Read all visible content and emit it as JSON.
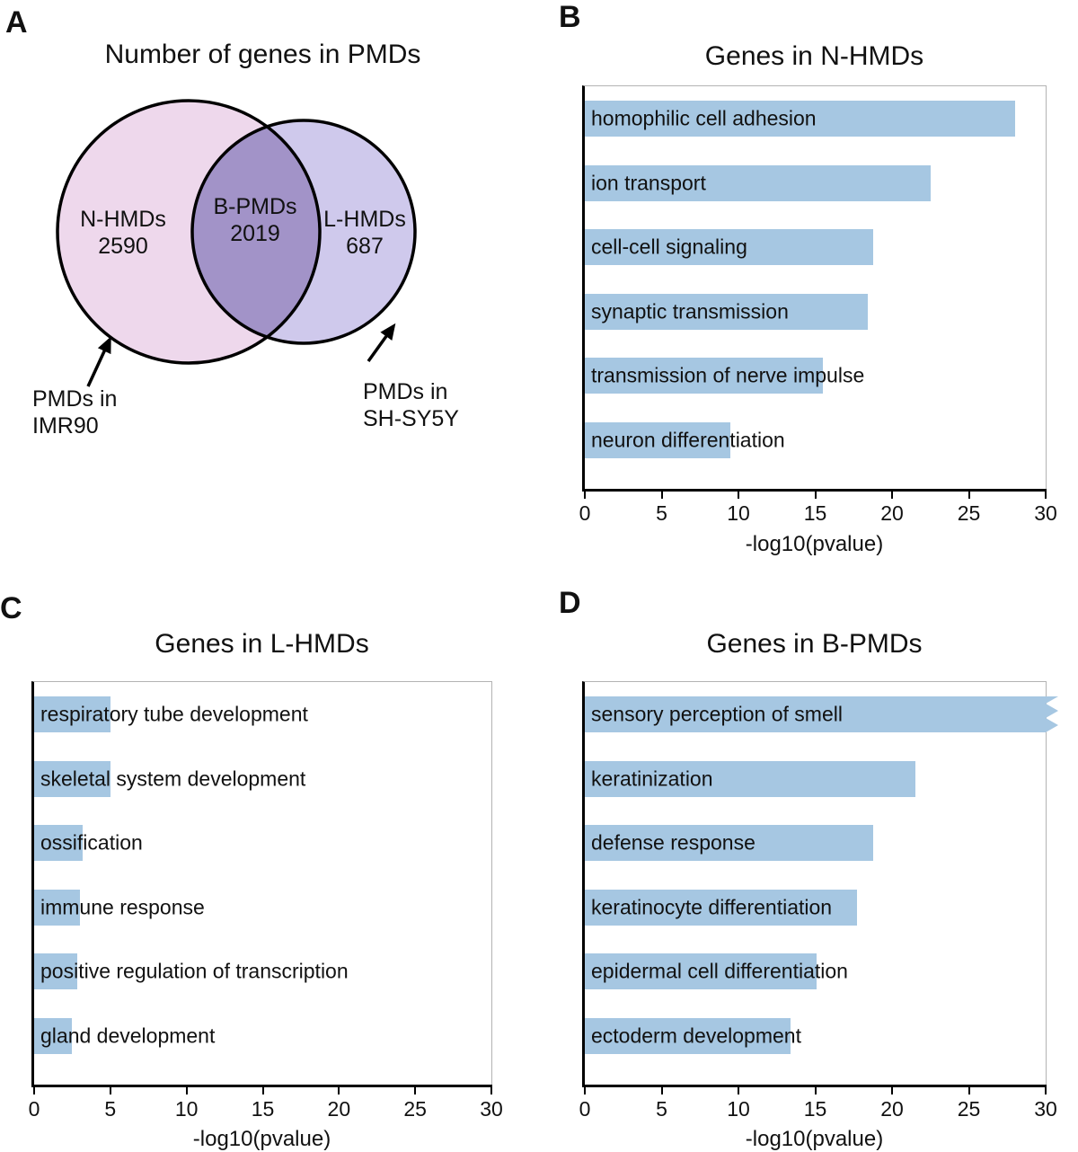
{
  "panels": {
    "a": {
      "letter": "A"
    },
    "b": {
      "letter": "B"
    },
    "c": {
      "letter": "C"
    },
    "d": {
      "letter": "D"
    }
  },
  "venn": {
    "title": "Number of genes in PMDs",
    "left": {
      "label": "N-HMDs",
      "value": "2590"
    },
    "overlap": {
      "label": "B-PMDs",
      "value": "2019"
    },
    "right": {
      "label": "L-HMDs",
      "value": "687"
    },
    "left_arrow": {
      "line1": "PMDs in",
      "line2": "IMR90"
    },
    "right_arrow": {
      "line1": "PMDs in",
      "line2": "SH-SY5Y"
    },
    "colors": {
      "left": "#eed8ec",
      "right": "#cfc9ec",
      "overlap": "#a293c8",
      "stroke": "#000000"
    }
  },
  "chart_data": [
    {
      "id": "B",
      "type": "bar",
      "title": "Genes in N-HMDs",
      "xlabel": "-log10(pvalue)",
      "xlim": [
        0,
        30
      ],
      "ticks": [
        0,
        5,
        10,
        15,
        20,
        25,
        30
      ],
      "categories": [
        "homophilic cell adhesion",
        "ion transport",
        "cell-cell signaling",
        "synaptic transmission",
        "transmission of nerve impulse",
        "neuron differentiation"
      ],
      "values": [
        28,
        22.5,
        18.8,
        18.4,
        15.5,
        9.5
      ],
      "bar_color": "#a6c7e2",
      "legend": "none",
      "grid": false
    },
    {
      "id": "C",
      "type": "bar",
      "title": "Genes in L-HMDs",
      "xlabel": "-log10(pvalue)",
      "xlim": [
        0,
        30
      ],
      "ticks": [
        0,
        5,
        10,
        15,
        20,
        25,
        30
      ],
      "categories": [
        "respiratory tube development",
        "skeletal system development",
        "ossification",
        "immune response",
        "positive regulation of transcription",
        "gland development"
      ],
      "values": [
        5,
        5,
        3.2,
        3.0,
        2.8,
        2.5
      ],
      "bar_color": "#a6c7e2",
      "legend": "none",
      "grid": false
    },
    {
      "id": "D",
      "type": "bar",
      "title": "Genes in B-PMDs",
      "xlabel": "-log10(pvalue)",
      "xlim": [
        0,
        30
      ],
      "ticks": [
        0,
        5,
        10,
        15,
        20,
        25,
        30
      ],
      "categories": [
        "sensory perception of smell",
        "keratinization",
        "defense response",
        "keratinocyte differentiation",
        "epidermal cell differentiation",
        "ectoderm development"
      ],
      "values": [
        31,
        21.5,
        18.8,
        17.7,
        15.1,
        13.4
      ],
      "overflow_index": 0,
      "bar_color": "#a6c7e2",
      "legend": "none",
      "grid": false
    }
  ]
}
